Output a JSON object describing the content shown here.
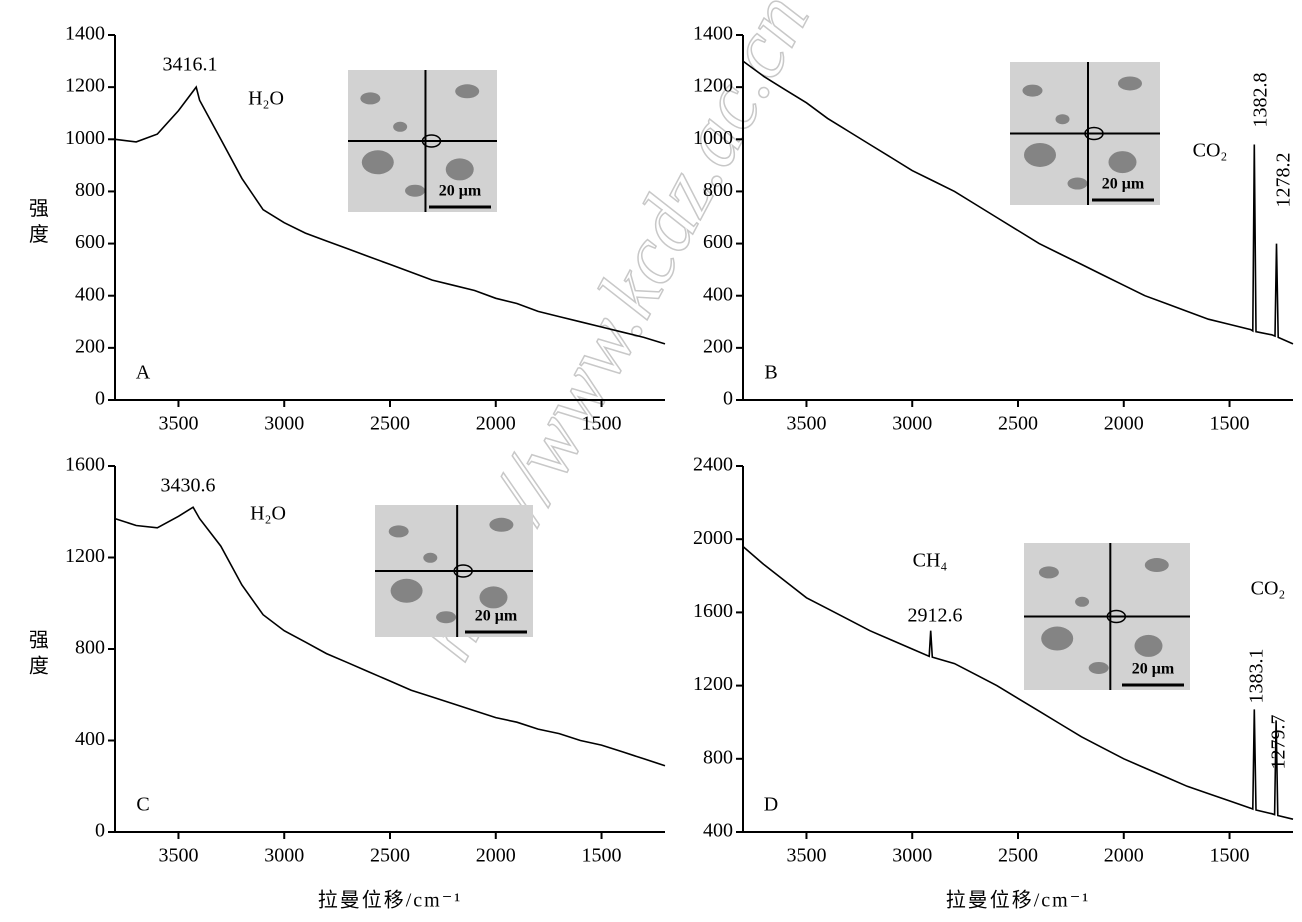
{
  "watermark": "http://www.kcdz.ac.cn",
  "chart_data": [
    {
      "type": "line",
      "panel_label": "A",
      "y_label": "强度",
      "color": "#000000",
      "annotations": [
        "3416.1",
        "H₂O"
      ],
      "inset_scale": "20 μm",
      "xlim": [
        3800,
        1200
      ],
      "ylim": [
        0,
        1400
      ],
      "xticks": [
        3500,
        3000,
        2500,
        2000,
        1500
      ],
      "yticks": [
        0,
        200,
        400,
        600,
        800,
        1000,
        1200,
        1400
      ],
      "x": [
        3800,
        3700,
        3600,
        3500,
        3416.1,
        3400,
        3300,
        3200,
        3100,
        3000,
        2900,
        2800,
        2700,
        2600,
        2500,
        2400,
        2300,
        2200,
        2100,
        2000,
        1900,
        1800,
        1700,
        1600,
        1500,
        1400,
        1300,
        1200
      ],
      "values": [
        1000,
        990,
        1020,
        1110,
        1200,
        1150,
        1000,
        850,
        730,
        680,
        640,
        610,
        580,
        550,
        520,
        490,
        460,
        440,
        420,
        390,
        370,
        340,
        320,
        300,
        280,
        260,
        240,
        215
      ]
    },
    {
      "type": "line",
      "panel_label": "B",
      "color": "#000000",
      "annotations": [
        "CO₂",
        "1382.8",
        "1278.2"
      ],
      "inset_scale": "20 μm",
      "xlim": [
        3800,
        1200
      ],
      "ylim": [
        0,
        1400
      ],
      "xticks": [
        3500,
        3000,
        2500,
        2000,
        1500
      ],
      "yticks": [
        0,
        200,
        400,
        600,
        800,
        1000,
        1200,
        1400
      ],
      "x": [
        3800,
        3700,
        3600,
        3500,
        3400,
        3300,
        3200,
        3100,
        3000,
        2900,
        2800,
        2700,
        2600,
        2500,
        2400,
        2300,
        2200,
        2100,
        2000,
        1900,
        1800,
        1700,
        1600,
        1500,
        1400,
        1390,
        1382.8,
        1375,
        1300,
        1285,
        1278.2,
        1270,
        1200
      ],
      "values": [
        1300,
        1240,
        1190,
        1140,
        1080,
        1030,
        980,
        930,
        880,
        840,
        800,
        750,
        700,
        650,
        600,
        560,
        520,
        480,
        440,
        400,
        370,
        340,
        310,
        290,
        270,
        265,
        980,
        262,
        250,
        245,
        600,
        240,
        215
      ]
    },
    {
      "type": "line",
      "panel_label": "C",
      "y_label": "强度",
      "x_label": "拉曼位移/cm⁻¹",
      "color": "#000000",
      "annotations": [
        "3430.6",
        "H₂O"
      ],
      "inset_scale": "20 μm",
      "xlim": [
        3800,
        1200
      ],
      "ylim": [
        0,
        1600
      ],
      "xticks": [
        3500,
        3000,
        2500,
        2000,
        1500
      ],
      "yticks": [
        0,
        400,
        800,
        1200,
        1600
      ],
      "x": [
        3800,
        3700,
        3600,
        3500,
        3430.6,
        3400,
        3300,
        3200,
        3100,
        3000,
        2900,
        2800,
        2700,
        2600,
        2500,
        2400,
        2300,
        2200,
        2100,
        2000,
        1900,
        1800,
        1700,
        1600,
        1500,
        1400,
        1300,
        1200
      ],
      "values": [
        1370,
        1340,
        1330,
        1380,
        1420,
        1370,
        1250,
        1080,
        950,
        880,
        830,
        780,
        740,
        700,
        660,
        620,
        590,
        560,
        530,
        500,
        480,
        450,
        430,
        400,
        380,
        350,
        320,
        290
      ]
    },
    {
      "type": "line",
      "panel_label": "D",
      "x_label": "拉曼位移/cm⁻¹",
      "color": "#000000",
      "annotations": [
        "CH₄",
        "2912.6",
        "CO₂",
        "1383.1",
        "1279.7"
      ],
      "inset_scale": "20 μm",
      "xlim": [
        3800,
        1200
      ],
      "ylim": [
        400,
        2400
      ],
      "xticks": [
        3500,
        3000,
        2500,
        2000,
        1500
      ],
      "yticks": [
        400,
        800,
        1200,
        1600,
        2000,
        2400
      ],
      "x": [
        3800,
        3700,
        3600,
        3500,
        3400,
        3300,
        3200,
        3100,
        3000,
        2920,
        2912.6,
        2905,
        2800,
        2700,
        2600,
        2500,
        2400,
        2300,
        2200,
        2100,
        2000,
        1900,
        1800,
        1700,
        1600,
        1500,
        1400,
        1390,
        1383.1,
        1375,
        1300,
        1287,
        1279.7,
        1272,
        1200
      ],
      "values": [
        1960,
        1860,
        1770,
        1680,
        1620,
        1560,
        1500,
        1450,
        1400,
        1360,
        1500,
        1355,
        1320,
        1260,
        1200,
        1130,
        1060,
        990,
        920,
        860,
        800,
        750,
        700,
        650,
        610,
        570,
        530,
        525,
        1070,
        520,
        500,
        495,
        1010,
        490,
        470
      ]
    }
  ]
}
